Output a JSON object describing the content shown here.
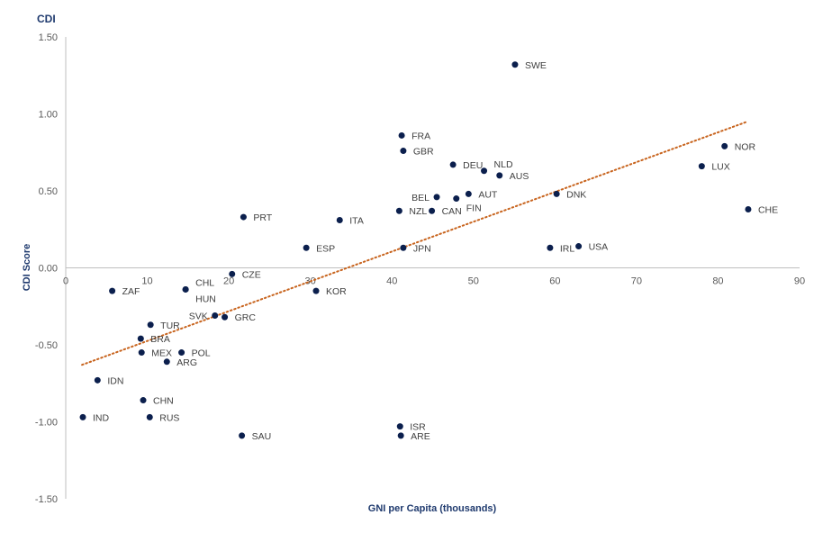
{
  "chart_data": {
    "type": "scatter",
    "title": "CDI",
    "xlabel": "GNI  per Capita (thousands)",
    "ylabel": "CDI  Score",
    "xlim": [
      0,
      90
    ],
    "ylim": [
      -1.5,
      1.5
    ],
    "xticks": [
      "0",
      "10",
      "20",
      "30",
      "40",
      "50",
      "60",
      "70",
      "80",
      "90"
    ],
    "yticks": [
      "1.50",
      "1.00",
      "0.50",
      "0.00",
      "-0.50",
      "-1.00",
      "-1.50"
    ],
    "grid": false,
    "colors": {
      "points": "#0b1f4d",
      "trendline": "#c8641e",
      "title": "#1f3a6e",
      "axis": "#bfbfbf"
    },
    "trendline": {
      "style": "dotted",
      "x": [
        2.0,
        83.6
      ],
      "y": [
        -0.63,
        0.95
      ]
    },
    "points": [
      {
        "label": "SWE",
        "x": 55.1,
        "y": 1.32
      },
      {
        "label": "FRA",
        "x": 41.2,
        "y": 0.86
      },
      {
        "label": "GBR",
        "x": 41.4,
        "y": 0.76
      },
      {
        "label": "DEU",
        "x": 47.5,
        "y": 0.67
      },
      {
        "label": "NLD",
        "x": 51.3,
        "y": 0.63
      },
      {
        "label": "AUS",
        "x": 53.2,
        "y": 0.6
      },
      {
        "label": "NOR",
        "x": 80.8,
        "y": 0.79
      },
      {
        "label": "LUX",
        "x": 78.0,
        "y": 0.66
      },
      {
        "label": "CHE",
        "x": 83.7,
        "y": 0.38
      },
      {
        "label": "DNK",
        "x": 60.2,
        "y": 0.48
      },
      {
        "label": "BEL",
        "x": 45.5,
        "y": 0.46
      },
      {
        "label": "AUT",
        "x": 49.4,
        "y": 0.48
      },
      {
        "label": "FIN",
        "x": 47.9,
        "y": 0.45
      },
      {
        "label": "NZL",
        "x": 40.9,
        "y": 0.37
      },
      {
        "label": "CAN",
        "x": 44.9,
        "y": 0.37
      },
      {
        "label": "PRT",
        "x": 21.8,
        "y": 0.33
      },
      {
        "label": "ITA",
        "x": 33.6,
        "y": 0.31
      },
      {
        "label": "ESP",
        "x": 29.5,
        "y": 0.13
      },
      {
        "label": "JPN",
        "x": 41.4,
        "y": 0.13
      },
      {
        "label": "IRL",
        "x": 59.4,
        "y": 0.13
      },
      {
        "label": "USA",
        "x": 62.9,
        "y": 0.14
      },
      {
        "label": "CZE",
        "x": 20.4,
        "y": -0.04
      },
      {
        "label": "ZAF",
        "x": 5.7,
        "y": -0.15
      },
      {
        "label": "CHL",
        "x": 14.7,
        "y": -0.14
      },
      {
        "label": "HUN",
        "x": 14.7,
        "y": -0.14
      },
      {
        "label": "KOR",
        "x": 30.7,
        "y": -0.15
      },
      {
        "label": "SVK",
        "x": 18.3,
        "y": -0.31
      },
      {
        "label": "GRC",
        "x": 19.5,
        "y": -0.32
      },
      {
        "label": "TUR",
        "x": 10.4,
        "y": -0.37
      },
      {
        "label": "BRA",
        "x": 9.2,
        "y": -0.46
      },
      {
        "label": "MEX",
        "x": 9.3,
        "y": -0.55
      },
      {
        "label": "POL",
        "x": 14.2,
        "y": -0.55
      },
      {
        "label": "ARG",
        "x": 12.4,
        "y": -0.61
      },
      {
        "label": "IDN",
        "x": 3.9,
        "y": -0.73
      },
      {
        "label": "CHN",
        "x": 9.5,
        "y": -0.86
      },
      {
        "label": "IND",
        "x": 2.1,
        "y": -0.97
      },
      {
        "label": "RUS",
        "x": 10.3,
        "y": -0.97
      },
      {
        "label": "SAU",
        "x": 21.6,
        "y": -1.09
      },
      {
        "label": "ISR",
        "x": 41.0,
        "y": -1.03
      },
      {
        "label": "ARE",
        "x": 41.1,
        "y": -1.09
      }
    ]
  }
}
